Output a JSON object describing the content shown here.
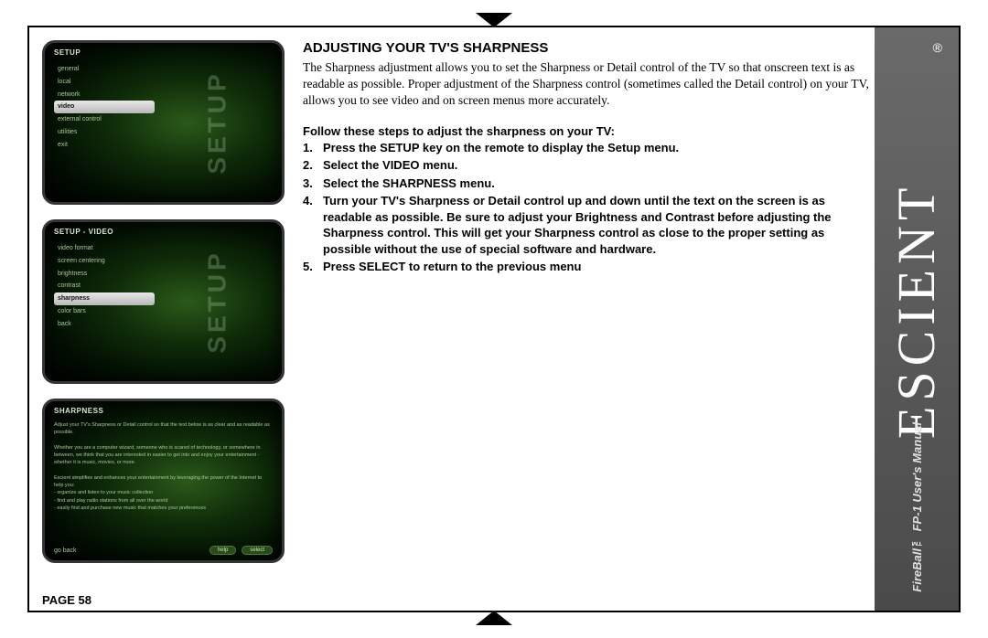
{
  "page": {
    "number_label": "PAGE 58"
  },
  "brand": {
    "name": "ESCIENT",
    "registered": "®",
    "product": "FireBall™ FP-1",
    "doc": "User's Manual"
  },
  "heading": "ADJUSTING YOUR TV'S SHARPNESS",
  "intro": "The Sharpness adjustment allows you to set the Sharpness or Detail control of the TV so that onscreen text is as readable as possible. Proper adjustment of the Sharpness control (sometimes called the Detail control) on your TV, allows you to see video and on screen menus more accurately.",
  "steps_intro": "Follow these steps to adjust the sharpness on your TV:",
  "steps": [
    "Press the SETUP key on the remote to display the Setup menu.",
    "Select the VIDEO menu.",
    "Select the SHARPNESS menu.",
    "Turn your TV's Sharpness or Detail control up and down until the text on the screen is as readable as possible. Be sure to adjust your Brightness and Contrast before adjusting the Sharpness control. This will get your Sharpness control as close to the proper setting as possible without the use of special software and hardware.",
    "Press SELECT to return to the previous menu"
  ],
  "shots": {
    "colors": {
      "border": "#353535",
      "bg_center": "#2a5a1a",
      "bg_outer": "#000000",
      "text": "#a8c898",
      "watermark": "rgba(200,230,200,0.25)",
      "highlight_bg": "#d8d8d8",
      "highlight_text": "#111111"
    },
    "shot1": {
      "title": "SETUP",
      "watermark": "SETUP",
      "items": [
        "general",
        "local",
        "network",
        "video",
        "external control",
        "utilities",
        "exit"
      ],
      "selected_index": 3
    },
    "shot2": {
      "title": "SETUP - VIDEO",
      "watermark": "SETUP",
      "items": [
        "video format",
        "screen centering",
        "brightness",
        "contrast",
        "sharpness",
        "color bars",
        "back"
      ],
      "selected_index": 4
    },
    "shot3": {
      "title": "SHARPNESS",
      "body_lines": [
        "Adjust your TV's Sharpness or Detail control so that the text below is as clear and as readable as possible.",
        "",
        "Whether you are a computer wizard, someone who is scared of technology, or somewhere in between, we think that you are interested in easier to get into and enjoy your entertainment - whether it is music, movies, or more.",
        "",
        "Escient simplifies and enhances your entertainment by leveraging the power of the Internet to help you:",
        "  - organize and listen to your music collection",
        "  - find and play radio stations from all over the world",
        "  - easily find and purchase new music that matches your preferences"
      ],
      "footer_left": "go back",
      "footer_btn_left": "help",
      "footer_btn_right": "select"
    }
  }
}
